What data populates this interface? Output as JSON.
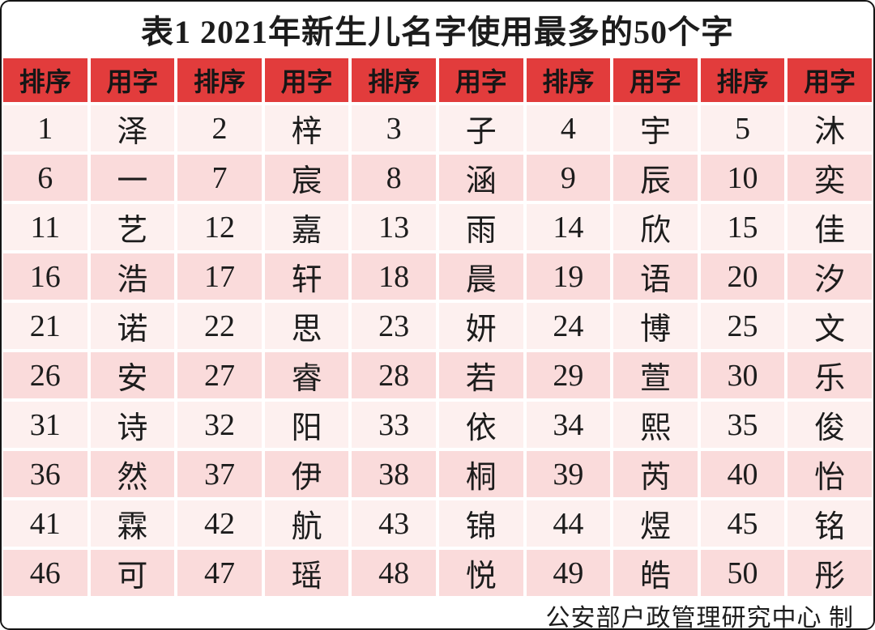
{
  "chart_data": {
    "type": "table",
    "title": "表1 2021年新生儿名字使用最多的50个字",
    "columns": [
      "排序",
      "用字",
      "排序",
      "用字",
      "排序",
      "用字",
      "排序",
      "用字",
      "排序",
      "用字"
    ],
    "rows": [
      [
        "1",
        "泽",
        "2",
        "梓",
        "3",
        "子",
        "4",
        "宇",
        "5",
        "沐"
      ],
      [
        "6",
        "一",
        "7",
        "宸",
        "8",
        "涵",
        "9",
        "辰",
        "10",
        "奕"
      ],
      [
        "11",
        "艺",
        "12",
        "嘉",
        "13",
        "雨",
        "14",
        "欣",
        "15",
        "佳"
      ],
      [
        "16",
        "浩",
        "17",
        "轩",
        "18",
        "晨",
        "19",
        "语",
        "20",
        "汐"
      ],
      [
        "21",
        "诺",
        "22",
        "思",
        "23",
        "妍",
        "24",
        "博",
        "25",
        "文"
      ],
      [
        "26",
        "安",
        "27",
        "睿",
        "28",
        "若",
        "29",
        "萱",
        "30",
        "乐"
      ],
      [
        "31",
        "诗",
        "32",
        "阳",
        "33",
        "依",
        "34",
        "熙",
        "35",
        "俊"
      ],
      [
        "36",
        "然",
        "37",
        "伊",
        "38",
        "桐",
        "39",
        "芮",
        "40",
        "怡"
      ],
      [
        "41",
        "霖",
        "42",
        "航",
        "43",
        "锦",
        "44",
        "煜",
        "45",
        "铭"
      ],
      [
        "46",
        "可",
        "47",
        "瑶",
        "48",
        "悦",
        "49",
        "皓",
        "50",
        "彤"
      ]
    ],
    "source_note": "公安部户政管理研究中心 制"
  },
  "colors": {
    "header_bg": "#e23c3c",
    "row_light": "#fdf0ef",
    "row_dark": "#fadbdb",
    "grid": "#ffffff",
    "text": "#1c1c1c"
  }
}
